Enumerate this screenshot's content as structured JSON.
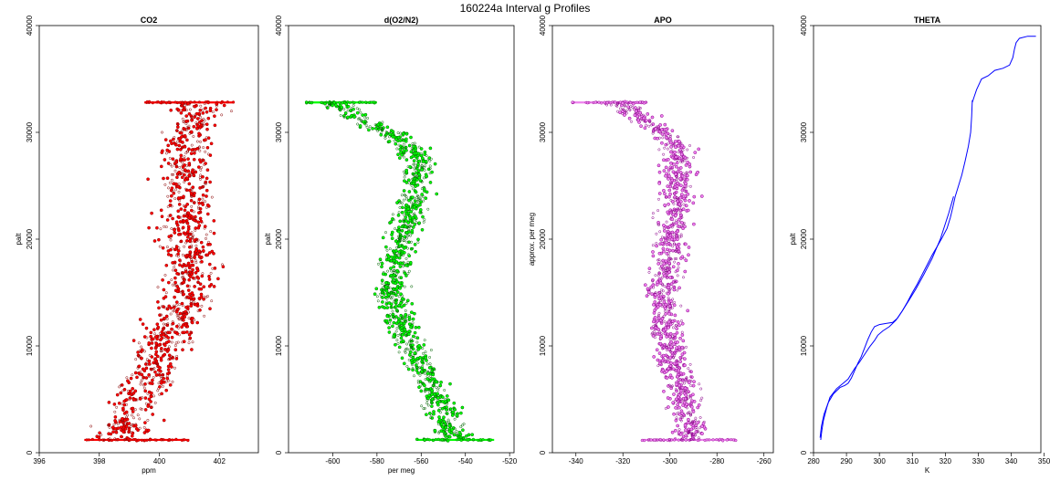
{
  "figure": {
    "title": "160224a   Interval g Profiles"
  },
  "chart_data": [
    {
      "type": "scatter",
      "title": "CO2",
      "xlabel": "ppm",
      "ylabel": "palt",
      "xlim": [
        396,
        403.3
      ],
      "ylim": [
        0,
        40000
      ],
      "xticks": [
        396,
        398,
        400,
        402
      ],
      "yticks": [
        0,
        10000,
        20000,
        30000,
        40000
      ],
      "series": [
        {
          "color": "#ff0000",
          "edge_color": "#8b0000",
          "profile": [
            {
              "y": 1200,
              "x": 398.6
            },
            {
              "y": 3000,
              "x": 398.9
            },
            {
              "y": 5000,
              "x": 399.2
            },
            {
              "y": 7000,
              "x": 399.7
            },
            {
              "y": 9000,
              "x": 400.0
            },
            {
              "y": 11000,
              "x": 400.3
            },
            {
              "y": 13000,
              "x": 400.7
            },
            {
              "y": 15000,
              "x": 400.9
            },
            {
              "y": 17000,
              "x": 401.0
            },
            {
              "y": 19000,
              "x": 401.0
            },
            {
              "y": 21000,
              "x": 400.9
            },
            {
              "y": 23000,
              "x": 400.8
            },
            {
              "y": 25000,
              "x": 400.8
            },
            {
              "y": 27000,
              "x": 400.9
            },
            {
              "y": 29000,
              "x": 401.0
            },
            {
              "y": 31000,
              "x": 401.1
            },
            {
              "y": 32800,
              "x": 401.2
            }
          ],
          "spread": 0.85,
          "bands": [
            {
              "y": 1200,
              "x_from": 397.5,
              "x_to": 401.0
            },
            {
              "y": 32800,
              "x_from": 399.5,
              "x_to": 402.5
            }
          ]
        }
      ]
    },
    {
      "type": "scatter",
      "title": "d(O2/N2)",
      "xlabel": "per meg",
      "ylabel": "palt",
      "xlim": [
        -620,
        -518
      ],
      "ylim": [
        0,
        40000
      ],
      "xticks": [
        -600,
        -580,
        -560,
        -540,
        -520
      ],
      "yticks": [
        0,
        10000,
        20000,
        30000,
        40000
      ],
      "series": [
        {
          "color": "#00ff00",
          "edge_color": "#006400",
          "profile": [
            {
              "y": 1200,
              "x": -545
            },
            {
              "y": 3000,
              "x": -548
            },
            {
              "y": 5000,
              "x": -553
            },
            {
              "y": 7000,
              "x": -557
            },
            {
              "y": 9000,
              "x": -562
            },
            {
              "y": 11000,
              "x": -567
            },
            {
              "y": 13000,
              "x": -570
            },
            {
              "y": 15000,
              "x": -573
            },
            {
              "y": 17000,
              "x": -572
            },
            {
              "y": 19000,
              "x": -570
            },
            {
              "y": 21000,
              "x": -567
            },
            {
              "y": 23000,
              "x": -564
            },
            {
              "y": 25000,
              "x": -562
            },
            {
              "y": 27000,
              "x": -561
            },
            {
              "y": 29000,
              "x": -565
            },
            {
              "y": 31000,
              "x": -585
            },
            {
              "y": 32800,
              "x": -600
            }
          ],
          "spread": 7,
          "bands": [
            {
              "y": 1200,
              "x_from": -562,
              "x_to": -527
            },
            {
              "y": 32800,
              "x_from": -612,
              "x_to": -580
            }
          ]
        }
      ]
    },
    {
      "type": "scatter",
      "title": "APO",
      "xlabel": "",
      "ylabel": "approx. per meg",
      "xlim": [
        -350,
        -256
      ],
      "ylim": [
        0,
        40000
      ],
      "xticks": [
        -340,
        -320,
        -300,
        -280,
        -260
      ],
      "yticks": [
        0,
        10000,
        20000,
        30000,
        40000
      ],
      "series": [
        {
          "color": "#ee82ee",
          "edge_color": "#8b008b",
          "profile": [
            {
              "y": 1200,
              "x": -293
            },
            {
              "y": 3000,
              "x": -292
            },
            {
              "y": 5000,
              "x": -294
            },
            {
              "y": 7000,
              "x": -296
            },
            {
              "y": 9000,
              "x": -299
            },
            {
              "y": 11000,
              "x": -301
            },
            {
              "y": 13000,
              "x": -302
            },
            {
              "y": 15000,
              "x": -303
            },
            {
              "y": 17000,
              "x": -302
            },
            {
              "y": 19000,
              "x": -300
            },
            {
              "y": 21000,
              "x": -298
            },
            {
              "y": 23000,
              "x": -297
            },
            {
              "y": 25000,
              "x": -296
            },
            {
              "y": 27000,
              "x": -296
            },
            {
              "y": 29000,
              "x": -298
            },
            {
              "y": 31000,
              "x": -310
            },
            {
              "y": 32800,
              "x": -322
            }
          ],
          "spread": 7,
          "bands": [
            {
              "y": 1200,
              "x_from": -312,
              "x_to": -272
            },
            {
              "y": 32800,
              "x_from": -342,
              "x_to": -310
            }
          ]
        }
      ]
    },
    {
      "type": "line",
      "title": "THETA",
      "xlabel": "K",
      "ylabel": "palt",
      "xlim": [
        280,
        349
      ],
      "ylim": [
        0,
        40000
      ],
      "xticks": [
        280,
        290,
        300,
        310,
        320,
        330,
        340,
        350
      ],
      "yticks": [
        0,
        10000,
        20000,
        30000,
        40000
      ],
      "series": [
        {
          "color": "#0000ff",
          "segments": [
            {
              "x": [
                282.2,
                282.5,
                283.0,
                284.0,
                285.0,
                287.0,
                289.0,
                290.5,
                291.5,
                292.5,
                294.0,
                295.5,
                297.0,
                298.5,
                299.5,
                301.0,
                303.0,
                305.0,
                307.0,
                309.0,
                311.0,
                313.5,
                316.0,
                318.5,
                321.0,
                322.5
              ],
              "y": [
                1200,
                2000,
                3000,
                4200,
                5200,
                6000,
                6500,
                6900,
                7400,
                7900,
                8500,
                9200,
                9900,
                10500,
                11000,
                11400,
                11800,
                12400,
                13300,
                14300,
                15300,
                16700,
                18200,
                20000,
                22400,
                24000
              ]
            },
            {
              "x": [
                282.0,
                282.4,
                283.2,
                284.5,
                286.0,
                288.0,
                289.5,
                290.5,
                291.5,
                292.5,
                293.5,
                294.5,
                295.5,
                296.5,
                297.5,
                298.5,
                300.0,
                302.0,
                304.0,
                305.5,
                307.0,
                308.5,
                310.0,
                311.5,
                313.0,
                314.5,
                316.0,
                317.5,
                319.0,
                320.5,
                321.5,
                322.3,
                323.0,
                324.0,
                325.0,
                326.0,
                327.0,
                327.7,
                328.0,
                328.2,
                328.2,
                328.6,
                329.5,
                331.0,
                333.0,
                335.0,
                337.5,
                339.5,
                340.5,
                341.0,
                341.5,
                342.5,
                345.0,
                347.5
              ],
              "y": [
                1400,
                2500,
                3600,
                4700,
                5500,
                6100,
                6300,
                6500,
                7000,
                7700,
                8400,
                9000,
                9800,
                10600,
                11300,
                11800,
                12000,
                12100,
                12200,
                12600,
                13300,
                14100,
                15000,
                15800,
                16700,
                17600,
                18500,
                19300,
                20100,
                21000,
                22000,
                23000,
                24000,
                25000,
                26000,
                27300,
                28700,
                30000,
                31500,
                33000,
                32800,
                33200,
                34000,
                35000,
                35300,
                35800,
                36000,
                36300,
                37000,
                37800,
                38400,
                38800,
                39000,
                39000
              ]
            }
          ]
        }
      ]
    }
  ]
}
